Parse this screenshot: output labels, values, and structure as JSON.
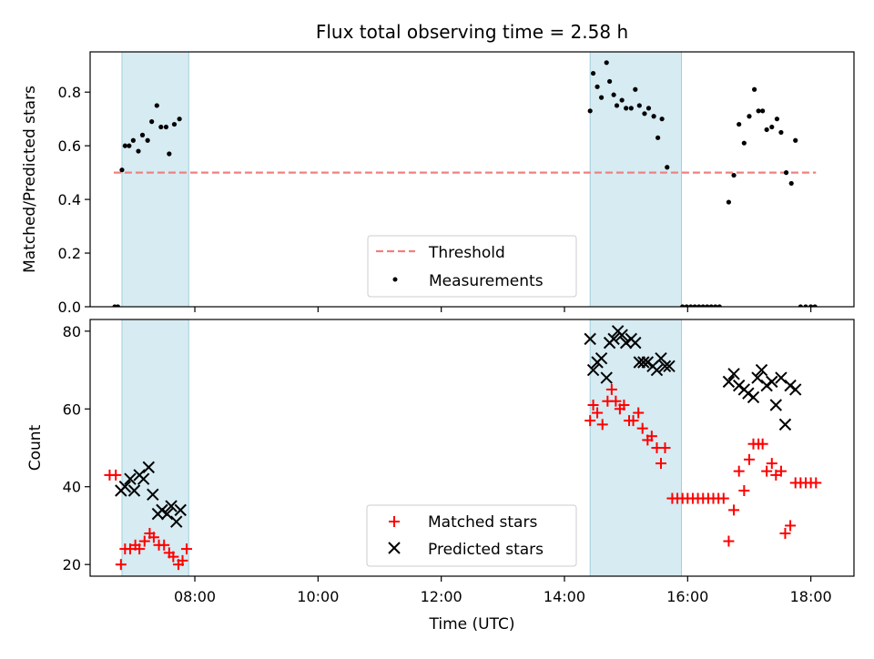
{
  "chart_data": [
    {
      "type": "scatter",
      "title": "Flux total observing time = 2.58 h",
      "xlabel": "",
      "ylabel": "Matched/Predicted stars",
      "ylim": [
        0,
        0.95
      ],
      "yticks": [
        0.0,
        0.2,
        0.4,
        0.6,
        0.8
      ],
      "ytick_labels": [
        "0.0",
        "0.2",
        "0.4",
        "0.6",
        "0.8"
      ],
      "xlim": [
        "06:18",
        "18:42"
      ],
      "highlight_intervals": [
        [
          "06:49",
          "07:54"
        ],
        [
          "14:25",
          "15:54"
        ]
      ],
      "threshold": {
        "name": "Threshold",
        "value": 0.5,
        "x_range": [
          "06:41",
          "18:05"
        ],
        "color": "#f08080"
      },
      "legend_position": "lower center",
      "series": [
        {
          "name": "Measurements",
          "color": "#000000",
          "points": [
            [
              "06:42",
              0.0
            ],
            [
              "06:45",
              0.0
            ],
            [
              "06:49",
              0.51
            ],
            [
              "06:52",
              0.6
            ],
            [
              "06:56",
              0.6
            ],
            [
              "07:00",
              0.62
            ],
            [
              "07:05",
              0.58
            ],
            [
              "07:09",
              0.64
            ],
            [
              "07:14",
              0.62
            ],
            [
              "07:18",
              0.69
            ],
            [
              "07:23",
              0.75
            ],
            [
              "07:27",
              0.67
            ],
            [
              "07:32",
              0.67
            ],
            [
              "07:35",
              0.57
            ],
            [
              "07:40",
              0.68
            ],
            [
              "07:45",
              0.7
            ],
            [
              "14:25",
              0.73
            ],
            [
              "14:28",
              0.87
            ],
            [
              "14:32",
              0.82
            ],
            [
              "14:36",
              0.78
            ],
            [
              "14:41",
              0.91
            ],
            [
              "14:44",
              0.84
            ],
            [
              "14:48",
              0.79
            ],
            [
              "14:51",
              0.75
            ],
            [
              "14:56",
              0.77
            ],
            [
              "15:00",
              0.74
            ],
            [
              "15:05",
              0.74
            ],
            [
              "15:09",
              0.81
            ],
            [
              "15:13",
              0.75
            ],
            [
              "15:18",
              0.72
            ],
            [
              "15:22",
              0.74
            ],
            [
              "15:27",
              0.71
            ],
            [
              "15:31",
              0.63
            ],
            [
              "15:35",
              0.7
            ],
            [
              "15:40",
              0.52
            ],
            [
              "15:55",
              0.0
            ],
            [
              "15:59",
              0.0
            ],
            [
              "16:03",
              0.0
            ],
            [
              "16:07",
              0.0
            ],
            [
              "16:11",
              0.0
            ],
            [
              "16:15",
              0.0
            ],
            [
              "16:19",
              0.0
            ],
            [
              "16:23",
              0.0
            ],
            [
              "16:27",
              0.0
            ],
            [
              "16:31",
              0.0
            ],
            [
              "16:40",
              0.39
            ],
            [
              "16:45",
              0.49
            ],
            [
              "16:50",
              0.68
            ],
            [
              "16:55",
              0.61
            ],
            [
              "17:00",
              0.71
            ],
            [
              "17:05",
              0.81
            ],
            [
              "17:09",
              0.73
            ],
            [
              "17:13",
              0.73
            ],
            [
              "17:17",
              0.66
            ],
            [
              "17:22",
              0.67
            ],
            [
              "17:27",
              0.7
            ],
            [
              "17:31",
              0.65
            ],
            [
              "17:36",
              0.5
            ],
            [
              "17:41",
              0.46
            ],
            [
              "17:45",
              0.62
            ],
            [
              "17:50",
              0.0
            ],
            [
              "17:55",
              0.0
            ],
            [
              "18:00",
              0.0
            ],
            [
              "18:04",
              0.0
            ]
          ]
        }
      ]
    },
    {
      "type": "scatter",
      "title": "",
      "xlabel": "Time (UTC)",
      "ylabel": "Count",
      "ylim": [
        17,
        83
      ],
      "yticks": [
        20,
        40,
        60,
        80
      ],
      "ytick_labels": [
        "20",
        "40",
        "60",
        "80"
      ],
      "xlim": [
        "06:18",
        "18:42"
      ],
      "xticks": [
        "08:00",
        "10:00",
        "12:00",
        "14:00",
        "16:00",
        "18:00"
      ],
      "xtick_labels": [
        "08:00",
        "10:00",
        "12:00",
        "14:00",
        "16:00",
        "18:00"
      ],
      "highlight_intervals": [
        [
          "06:49",
          "07:54"
        ],
        [
          "14:25",
          "15:54"
        ]
      ],
      "legend_position": "lower center",
      "series": [
        {
          "name": "Matched stars",
          "color": "#ff0000",
          "marker": "plus",
          "points": [
            [
              "06:37",
              43
            ],
            [
              "06:43",
              43
            ],
            [
              "06:48",
              20
            ],
            [
              "06:52",
              24
            ],
            [
              "06:57",
              24
            ],
            [
              "07:02",
              25
            ],
            [
              "07:06",
              24
            ],
            [
              "07:11",
              26
            ],
            [
              "07:16",
              28
            ],
            [
              "07:20",
              27
            ],
            [
              "07:25",
              25
            ],
            [
              "07:30",
              25
            ],
            [
              "07:35",
              23
            ],
            [
              "07:39",
              22
            ],
            [
              "07:44",
              20
            ],
            [
              "07:48",
              21
            ],
            [
              "07:52",
              24
            ],
            [
              "14:25",
              57
            ],
            [
              "14:28",
              61
            ],
            [
              "14:32",
              59
            ],
            [
              "14:37",
              56
            ],
            [
              "14:42",
              62
            ],
            [
              "14:46",
              65
            ],
            [
              "14:50",
              62
            ],
            [
              "14:54",
              60
            ],
            [
              "14:58",
              61
            ],
            [
              "15:03",
              57
            ],
            [
              "15:07",
              57
            ],
            [
              "15:12",
              59
            ],
            [
              "15:16",
              55
            ],
            [
              "15:21",
              52
            ],
            [
              "15:25",
              53
            ],
            [
              "15:30",
              50
            ],
            [
              "15:34",
              46
            ],
            [
              "15:38",
              50
            ],
            [
              "15:45",
              37
            ],
            [
              "15:50",
              37
            ],
            [
              "15:55",
              37
            ],
            [
              "16:00",
              37
            ],
            [
              "16:05",
              37
            ],
            [
              "16:10",
              37
            ],
            [
              "16:15",
              37
            ],
            [
              "16:20",
              37
            ],
            [
              "16:25",
              37
            ],
            [
              "16:30",
              37
            ],
            [
              "16:35",
              37
            ],
            [
              "16:40",
              26
            ],
            [
              "16:45",
              34
            ],
            [
              "16:50",
              44
            ],
            [
              "16:55",
              39
            ],
            [
              "17:00",
              47
            ],
            [
              "17:04",
              51
            ],
            [
              "17:09",
              51
            ],
            [
              "17:13",
              51
            ],
            [
              "17:17",
              44
            ],
            [
              "17:22",
              46
            ],
            [
              "17:26",
              43
            ],
            [
              "17:31",
              44
            ],
            [
              "17:35",
              28
            ],
            [
              "17:40",
              30
            ],
            [
              "17:45",
              41
            ],
            [
              "17:50",
              41
            ],
            [
              "17:55",
              41
            ],
            [
              "18:00",
              41
            ],
            [
              "18:05",
              41
            ]
          ]
        },
        {
          "name": "Predicted stars",
          "color": "#000000",
          "marker": "x",
          "points": [
            [
              "06:48",
              39
            ],
            [
              "06:52",
              40
            ],
            [
              "06:57",
              42
            ],
            [
              "07:01",
              39
            ],
            [
              "07:06",
              43
            ],
            [
              "07:10",
              42
            ],
            [
              "07:15",
              45
            ],
            [
              "07:19",
              38
            ],
            [
              "07:24",
              33
            ],
            [
              "07:28",
              34
            ],
            [
              "07:33",
              33
            ],
            [
              "07:37",
              35
            ],
            [
              "07:42",
              31
            ],
            [
              "07:46",
              34
            ],
            [
              "14:25",
              78
            ],
            [
              "14:28",
              70
            ],
            [
              "14:32",
              72
            ],
            [
              "14:36",
              73
            ],
            [
              "14:41",
              68
            ],
            [
              "14:44",
              77
            ],
            [
              "14:48",
              78
            ],
            [
              "14:52",
              80
            ],
            [
              "14:56",
              79
            ],
            [
              "15:00",
              77
            ],
            [
              "15:05",
              78
            ],
            [
              "15:09",
              77
            ],
            [
              "15:13",
              72
            ],
            [
              "15:17",
              72
            ],
            [
              "15:21",
              72
            ],
            [
              "15:26",
              71
            ],
            [
              "15:30",
              70
            ],
            [
              "15:34",
              73
            ],
            [
              "15:38",
              71
            ],
            [
              "15:42",
              71
            ],
            [
              "16:40",
              67
            ],
            [
              "16:45",
              69
            ],
            [
              "16:50",
              66
            ],
            [
              "16:55",
              65
            ],
            [
              "16:59",
              64
            ],
            [
              "17:04",
              63
            ],
            [
              "17:08",
              68
            ],
            [
              "17:12",
              70
            ],
            [
              "17:17",
              66
            ],
            [
              "17:22",
              67
            ],
            [
              "17:26",
              61
            ],
            [
              "17:31",
              68
            ],
            [
              "17:35",
              56
            ],
            [
              "17:40",
              66
            ],
            [
              "17:45",
              65
            ]
          ]
        }
      ]
    }
  ]
}
